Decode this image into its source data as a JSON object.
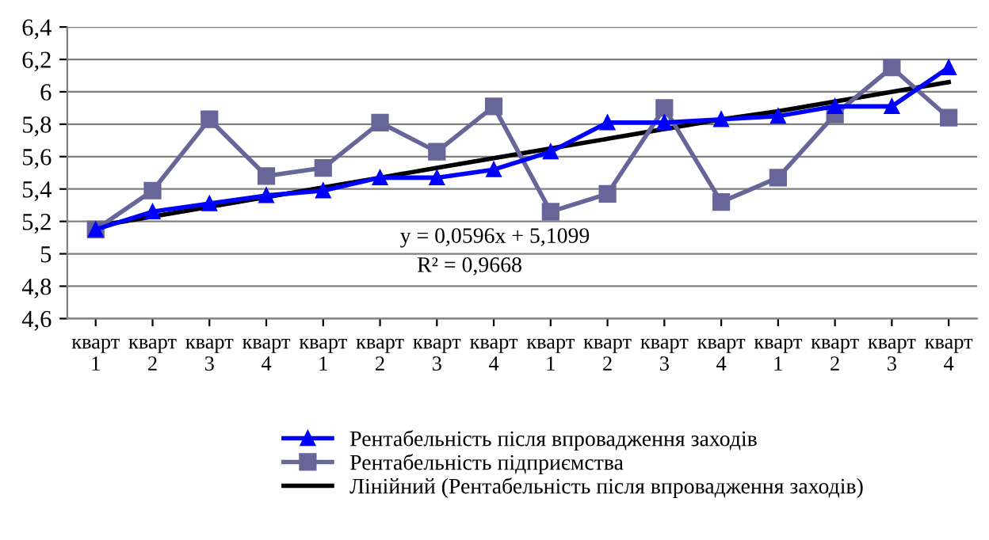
{
  "chart_data": {
    "type": "line",
    "categories": [
      "кварт\n1",
      "кварт\n2",
      "кварт\n3",
      "кварт\n4",
      "кварт\n1",
      "кварт\n2",
      "кварт\n3",
      "кварт\n4",
      "кварт\n1",
      "кварт\n2",
      "кварт\n3",
      "кварт\n4",
      "кварт\n1",
      "кварт\n2",
      "кварт\n3",
      "кварт\n4"
    ],
    "series": [
      {
        "name": "Рентабельність після впровадження заходів",
        "color": "#0000ff",
        "marker": "triangle",
        "values": [
          5.15,
          5.26,
          5.31,
          5.36,
          5.39,
          5.47,
          5.47,
          5.52,
          5.63,
          5.81,
          5.81,
          5.83,
          5.85,
          5.91,
          5.91,
          6.15
        ]
      },
      {
        "name": "Рентабельність підприємства",
        "color": "#666699",
        "marker": "square",
        "values": [
          5.15,
          5.39,
          5.83,
          5.48,
          5.53,
          5.81,
          5.63,
          5.91,
          5.26,
          5.37,
          5.9,
          5.32,
          5.47,
          5.86,
          6.15,
          5.84
        ]
      },
      {
        "name": "Лінійний (Рентабельність після впровадження заходів)",
        "color": "#000000",
        "marker": "none",
        "values": [
          5.17,
          5.23,
          5.29,
          5.35,
          5.41,
          5.47,
          5.53,
          5.59,
          5.65,
          5.71,
          5.77,
          5.83,
          5.88,
          5.94,
          6.0,
          6.06
        ]
      }
    ],
    "ylim": [
      4.6,
      6.4
    ],
    "yticks": [
      {
        "value": 4.6,
        "label": "4,6"
      },
      {
        "value": 4.8,
        "label": "4,8"
      },
      {
        "value": 5,
        "label": "5"
      },
      {
        "value": 5.2,
        "label": "5,2"
      },
      {
        "value": 5.4,
        "label": "5,4"
      },
      {
        "value": 5.6,
        "label": "5,6"
      },
      {
        "value": 5.8,
        "label": "5,8"
      },
      {
        "value": 6,
        "label": "6"
      },
      {
        "value": 6.2,
        "label": "6,2"
      },
      {
        "value": 6.4,
        "label": "6,4"
      }
    ],
    "grid": "y",
    "legend": "bottom",
    "annotations": [
      "y = 0,0596x + 5,1099",
      "R² = 0,9668"
    ]
  }
}
